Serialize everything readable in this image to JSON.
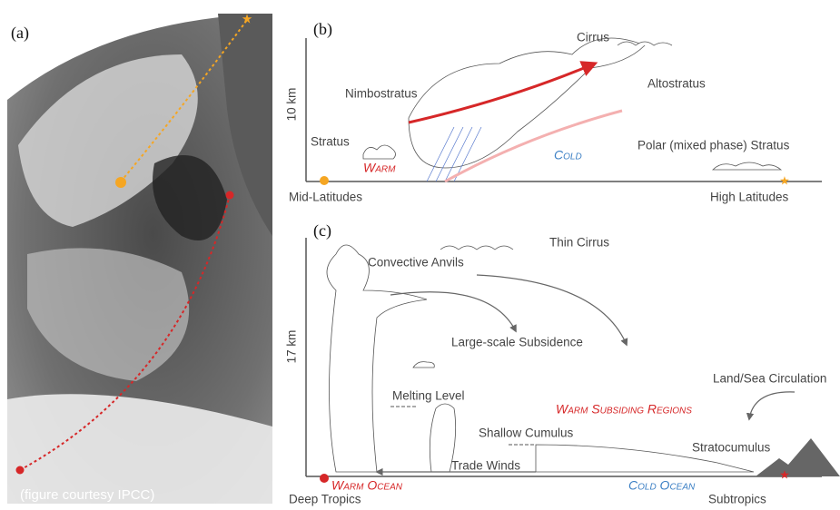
{
  "panel_a": {
    "label": "(a)",
    "credit": "(figure courtesy IPCC)"
  },
  "panel_b": {
    "label": "(b)",
    "axis_label": "10 km",
    "labels": {
      "cirrus": "Cirrus",
      "nimbostratus": "Nimbostratus",
      "altostratus": "Altostratus",
      "stratus": "Stratus",
      "warm": "Warm",
      "cold": "Cold",
      "polar_stratus": "Polar (mixed phase) Stratus",
      "left_end": "Mid-Latitudes",
      "right_end": "High Latitudes"
    }
  },
  "panel_c": {
    "label": "(c)",
    "axis_label": "17 km",
    "labels": {
      "thin_cirrus": "Thin Cirrus",
      "convective_anvils": "Convective Anvils",
      "subsidence": "Large-scale Subsidence",
      "land_sea": "Land/Sea Circulation",
      "warm_subsiding": "Warm Subsiding Regions",
      "melting_level": "Melting Level",
      "shallow_cumulus": "Shallow Cumulus",
      "stratocumulus": "Stratocumulus",
      "trade_winds": "Trade Winds",
      "warm_ocean": "Warm Ocean",
      "cold_ocean": "Cold Ocean",
      "left_end": "Deep Tropics",
      "right_end": "Subtropics"
    }
  }
}
